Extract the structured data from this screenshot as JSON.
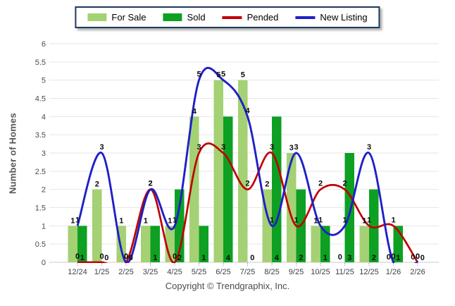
{
  "footer": {
    "copyright": "Copyright © Trendgraphix, Inc."
  },
  "chart_data": {
    "type": "combo",
    "title": "",
    "xlabel": "",
    "ylabel": "Number of Homes",
    "categories": [
      "12/24",
      "1/25",
      "2/25",
      "3/25",
      "4/25",
      "5/25",
      "6/25",
      "7/25",
      "8/25",
      "9/25",
      "10/25",
      "11/25",
      "12/25",
      "1/26",
      "2/26"
    ],
    "series": [
      {
        "name": "For Sale",
        "type": "bar",
        "color": "#a4d173",
        "values": [
          1,
          2,
          1,
          1,
          1,
          4,
          5,
          5,
          2,
          3,
          1,
          0,
          1,
          0,
          0
        ]
      },
      {
        "name": "Sold",
        "type": "bar",
        "color": "#0da023",
        "values": [
          1,
          0,
          0,
          1,
          2,
          1,
          4,
          0,
          4,
          2,
          1,
          3,
          2,
          1,
          0
        ]
      },
      {
        "name": "Pended",
        "type": "line",
        "color": "#c00000",
        "values": [
          0,
          0,
          0,
          2,
          0,
          3,
          3,
          2,
          3,
          1,
          2,
          2,
          1,
          1,
          0
        ]
      },
      {
        "name": "New Listing",
        "type": "line",
        "color": "#1f1fc8",
        "values": [
          1,
          3,
          0,
          2,
          1,
          5,
          5,
          4,
          1,
          3,
          1,
          1,
          3,
          0,
          0
        ]
      }
    ],
    "ylim": [
      0,
      6
    ],
    "ytick_step": 0.5,
    "yticks": [
      "0",
      "0.5",
      "1",
      "1.5",
      "2",
      "2.5",
      "3",
      "3.5",
      "4",
      "4.5",
      "5",
      "5.5",
      "6"
    ],
    "grid": true,
    "legend_position": "top",
    "data_labels": true,
    "colors": {
      "gridline": "#e6e6e6",
      "baseline": "#c9c9c9",
      "y_tick_text": "#4a4a52",
      "x_tick_text": "#3c414b",
      "x_tick_mark": "#6666cc",
      "data_label": "#0b0b0b",
      "legend_border": "#1c3a5e"
    }
  }
}
